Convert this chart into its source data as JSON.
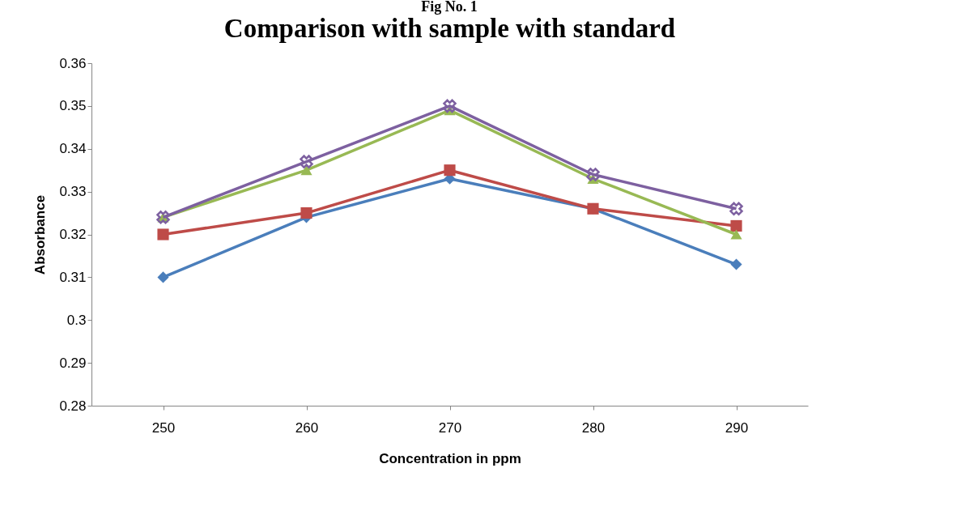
{
  "chart_data": {
    "type": "line",
    "title": "Comparison with sample with standard",
    "xlabel": "Concentration in ppm",
    "ylabel": "Absorbance",
    "annotations": [
      "Fig No. 1"
    ],
    "categories": [
      "250",
      "260",
      "270",
      "280",
      "290"
    ],
    "series": [
      {
        "color": "#4a7ebb",
        "marker": "diamond",
        "values": [
          0.31,
          0.324,
          0.333,
          0.326,
          0.313
        ]
      },
      {
        "color": "#be4b48",
        "marker": "square",
        "values": [
          0.32,
          0.325,
          0.335,
          0.326,
          0.322
        ]
      },
      {
        "color": "#98b954",
        "marker": "triangle",
        "values": [
          0.324,
          0.335,
          0.349,
          0.333,
          0.32
        ]
      },
      {
        "color": "#7d60a0",
        "marker": "cross",
        "values": [
          0.324,
          0.337,
          0.35,
          0.334,
          0.326
        ]
      }
    ],
    "ylim": [
      0.28,
      0.36
    ],
    "yticks": [
      0.28,
      0.29,
      0.3,
      0.31,
      0.32,
      0.33,
      0.34,
      0.35,
      0.36
    ],
    "grid": false
  }
}
